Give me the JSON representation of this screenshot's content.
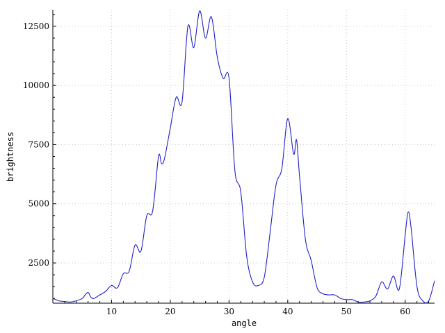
{
  "chart_data": {
    "type": "line",
    "title": "",
    "xlabel": "angle",
    "ylabel": "brightness",
    "xlim": [
      0,
      65
    ],
    "ylim": [
      800,
      13200
    ],
    "x_ticks": [
      10,
      20,
      30,
      40,
      50,
      60
    ],
    "y_ticks": [
      2500,
      5000,
      7500,
      10000,
      12500
    ],
    "grid": true,
    "legend": "none",
    "series": [
      {
        "color": "#1f1fc8",
        "points": [
          [
            0,
            1000
          ],
          [
            1,
            900
          ],
          [
            2,
            870
          ],
          [
            3,
            850
          ],
          [
            4,
            900
          ],
          [
            5,
            1000
          ],
          [
            5.5,
            1150
          ],
          [
            6,
            1250
          ],
          [
            6.5,
            1050
          ],
          [
            7,
            1000
          ],
          [
            8,
            1150
          ],
          [
            9,
            1300
          ],
          [
            10,
            1550
          ],
          [
            11,
            1450
          ],
          [
            12,
            2050
          ],
          [
            13,
            2150
          ],
          [
            14,
            3250
          ],
          [
            15,
            3000
          ],
          [
            16,
            4500
          ],
          [
            17,
            4700
          ],
          [
            18,
            7000
          ],
          [
            18.5,
            6700
          ],
          [
            19,
            6900
          ],
          [
            20,
            8200
          ],
          [
            21,
            9500
          ],
          [
            22,
            9300
          ],
          [
            23,
            12500
          ],
          [
            24,
            11600
          ],
          [
            25,
            13150
          ],
          [
            26,
            12000
          ],
          [
            27,
            12900
          ],
          [
            28,
            11200
          ],
          [
            29,
            10300
          ],
          [
            30,
            10300
          ],
          [
            31,
            6400
          ],
          [
            32,
            5500
          ],
          [
            33,
            2800
          ],
          [
            34,
            1700
          ],
          [
            35,
            1550
          ],
          [
            36,
            1900
          ],
          [
            37,
            3800
          ],
          [
            38,
            5800
          ],
          [
            39,
            6500
          ],
          [
            40,
            8600
          ],
          [
            41,
            7100
          ],
          [
            41.5,
            7700
          ],
          [
            42,
            6200
          ],
          [
            43,
            3500
          ],
          [
            44,
            2600
          ],
          [
            45,
            1450
          ],
          [
            46,
            1200
          ],
          [
            47,
            1150
          ],
          [
            48,
            1150
          ],
          [
            49,
            1000
          ],
          [
            50,
            950
          ],
          [
            51,
            950
          ],
          [
            52,
            850
          ],
          [
            53,
            850
          ],
          [
            54,
            900
          ],
          [
            55,
            1100
          ],
          [
            56,
            1700
          ],
          [
            57,
            1400
          ],
          [
            58,
            1950
          ],
          [
            59,
            1400
          ],
          [
            60,
            3700
          ],
          [
            60.5,
            4650
          ],
          [
            61,
            4000
          ],
          [
            62,
            1500
          ],
          [
            63,
            900
          ],
          [
            64,
            900
          ],
          [
            65,
            1750
          ]
        ]
      }
    ]
  }
}
